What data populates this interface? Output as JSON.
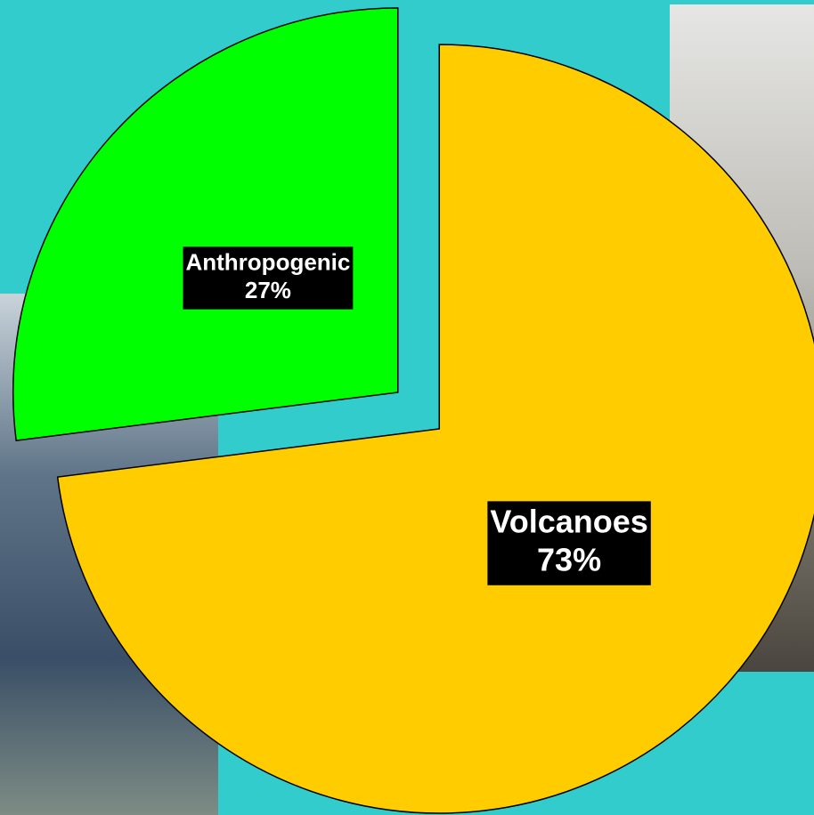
{
  "chart_data": {
    "type": "pie",
    "categories": [
      "Volcanoes",
      "Anthropogenic"
    ],
    "values": [
      73,
      27
    ],
    "value_labels": [
      "73%",
      "27%"
    ],
    "colors": [
      "#ffcc00",
      "#00ff00"
    ],
    "exploded": true
  }
}
